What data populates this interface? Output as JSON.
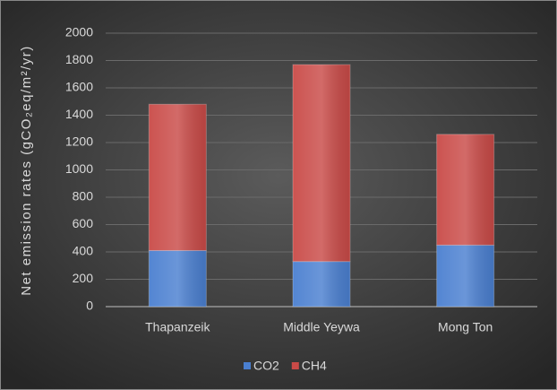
{
  "chart_data": {
    "type": "stacked_bar",
    "y_label": "Net emission rates (gCO₂eq/m²/yr)",
    "categories": [
      "Thapanzeik",
      "Middle Yeywa",
      "Mong Ton"
    ],
    "series": [
      {
        "name": "CO2",
        "color": "#4a7fd0",
        "values": [
          410,
          330,
          450
        ]
      },
      {
        "name": "CH4",
        "color": "#c94a47",
        "values": [
          1070,
          1440,
          810
        ]
      }
    ],
    "ylim": [
      0,
      2000
    ],
    "yticks": [
      0,
      200,
      400,
      600,
      800,
      1000,
      1200,
      1400,
      1600,
      1800,
      2000
    ],
    "grid": true,
    "legend": "bottom"
  }
}
